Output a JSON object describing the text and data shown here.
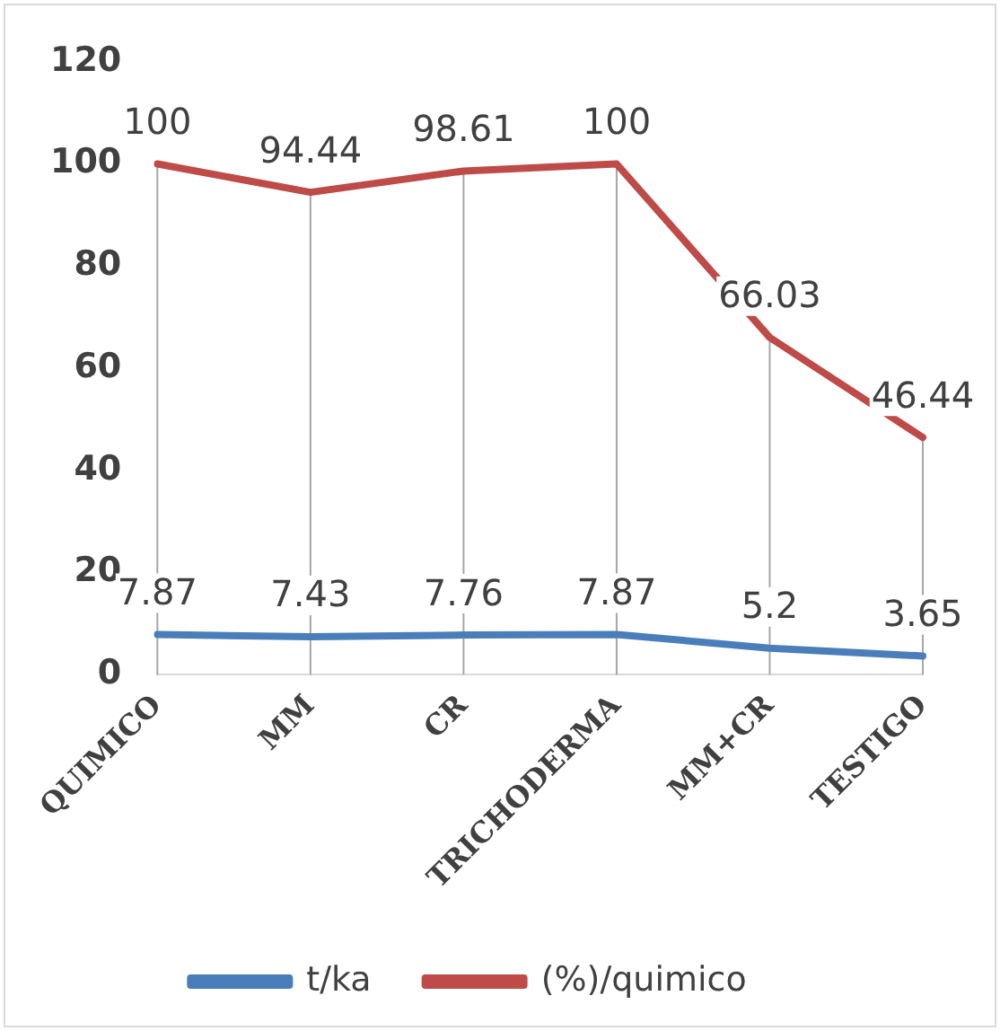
{
  "chart_data": {
    "type": "line",
    "categories": [
      "QUIMICO",
      "MM",
      "CR",
      "TRICHODERMA",
      "MM+CR",
      "TESTIGO"
    ],
    "series": [
      {
        "name": "t/ka",
        "color": "#4a7ebb",
        "values": [
          7.87,
          7.43,
          7.76,
          7.87,
          5.2,
          3.65
        ]
      },
      {
        "name": "(%)/quimico",
        "color": "#be4b48",
        "values": [
          100,
          94.44,
          98.61,
          100,
          66.03,
          46.44
        ]
      }
    ],
    "ylim": [
      0,
      120
    ],
    "yticks": [
      0,
      20,
      40,
      60,
      80,
      100,
      120
    ],
    "grid": "x",
    "legend": "bottom",
    "data_labels": true,
    "marker": "none",
    "line_style": "solid"
  }
}
